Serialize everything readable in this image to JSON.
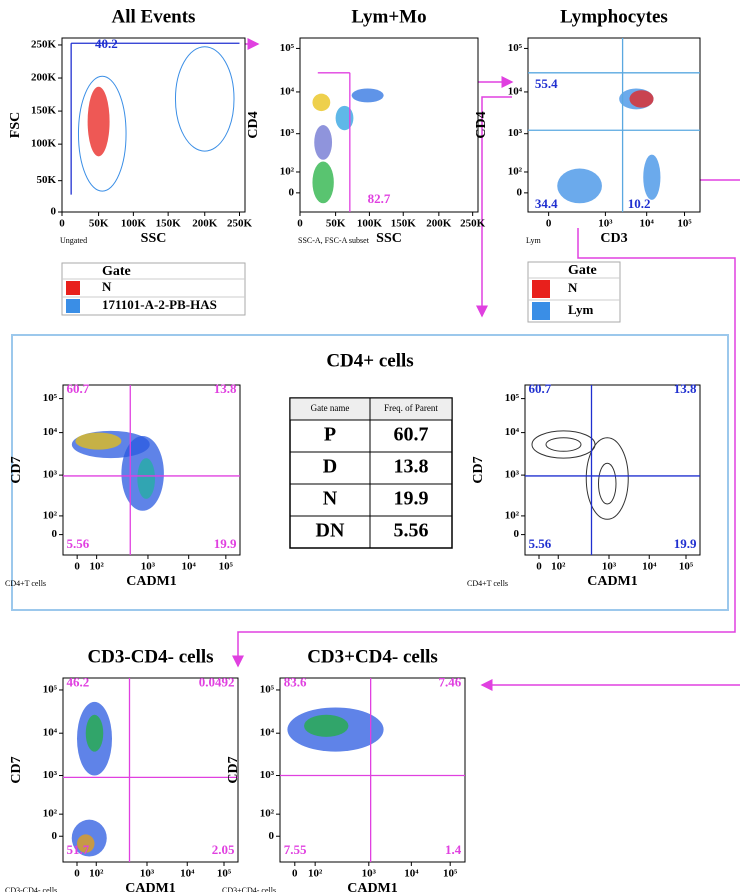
{
  "plots": [
    {
      "title": "All Events",
      "x_label": "SSC",
      "y_label": "FSC",
      "subset": "Ungated",
      "xticks": [
        "0",
        "50K",
        "100K",
        "150K",
        "200K",
        "250K"
      ],
      "yticks": [
        "250K",
        "200K",
        "150K",
        "100K",
        "50K",
        "0"
      ],
      "gates": [
        "40.2"
      ]
    },
    {
      "title": "Lym+Mo",
      "x_label": "SSC",
      "y_label": "CD4",
      "subset": "SSC-A, FSC-A subset",
      "xticks": [
        "0",
        "50K",
        "100K",
        "150K",
        "200K",
        "250K"
      ],
      "yticks": [
        "10⁵",
        "10⁴",
        "10³",
        "10²",
        "0"
      ],
      "gates": [
        "82.7"
      ]
    },
    {
      "title": "Lymphocytes",
      "x_label": "CD3",
      "y_label": "CD4",
      "subset": "Lym",
      "xticks": [
        "0",
        "10³",
        "10⁴",
        "10⁵"
      ],
      "yticks": [
        "10⁵",
        "10⁴",
        "10³",
        "10²",
        "0"
      ],
      "gates": [
        "55.4",
        "34.4",
        "10.2"
      ]
    },
    {
      "x_label": "CADM1",
      "y_label": "CD7",
      "subset": "CD4+T cells",
      "xticks": [
        "0",
        "10²",
        "10³",
        "10⁴",
        "10⁵"
      ],
      "yticks": [
        "10⁵",
        "10⁴",
        "10³",
        "10²",
        "0"
      ],
      "gates": [
        "60.7",
        "13.8",
        "5.56",
        "19.9"
      ]
    },
    {
      "x_label": "CADM1",
      "y_label": "CD7",
      "subset": "CD4+T cells",
      "xticks": [
        "0",
        "10²",
        "10³",
        "10⁴",
        "10⁵"
      ],
      "yticks": [
        "10⁵",
        "10⁴",
        "10³",
        "10²",
        "0"
      ],
      "gates": [
        "60.7",
        "13.8",
        "5.56",
        "19.9"
      ]
    },
    {
      "title": "CD3-CD4- cells",
      "x_label": "CADM1",
      "y_label": "CD7",
      "subset": "CD3-CD4- cells",
      "xticks": [
        "0",
        "10²",
        "10³",
        "10⁴",
        "10⁵"
      ],
      "yticks": [
        "10⁵",
        "10⁴",
        "10³",
        "10²",
        "0"
      ],
      "gates": [
        "46.2",
        "0.0492",
        "51.7",
        "2.05"
      ]
    },
    {
      "title": "CD3+CD4- cells",
      "x_label": "CADM1",
      "y_label": "CD7",
      "subset": "CD3+CD4- cells",
      "xticks": [
        "0",
        "10²",
        "10³",
        "10⁴",
        "10⁵"
      ],
      "yticks": [
        "10⁵",
        "10⁴",
        "10³",
        "10²",
        "0"
      ],
      "gates": [
        "83.6",
        "7.46",
        "7.55",
        "1.4"
      ]
    }
  ],
  "legends": [
    {
      "header": "Gate",
      "items": [
        "N",
        "171101-A-2-PB-HAS"
      ]
    },
    {
      "header": "Gate",
      "items": [
        "N",
        "Lym"
      ]
    }
  ],
  "cd4_box": {
    "title": "CD4+ cells",
    "table": {
      "columns": [
        "Gate name",
        "Freq. of Parent"
      ],
      "rows": [
        [
          "P",
          "60.7"
        ],
        [
          "D",
          "13.8"
        ],
        [
          "N",
          "19.9"
        ],
        [
          "DN",
          "5.56"
        ]
      ]
    }
  }
}
